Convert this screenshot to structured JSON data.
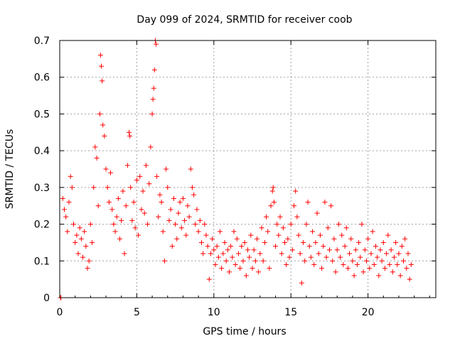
{
  "chart_data": {
    "type": "scatter",
    "title": "Day 099 of 2024, SRMTID for receiver coob",
    "xlabel": "GPS time / hours",
    "ylabel": "SRMTID / TECUs",
    "xlim": [
      0,
      24.4
    ],
    "ylim": [
      0,
      0.7
    ],
    "xticks": [
      0,
      5,
      10,
      15,
      20
    ],
    "xtick_labels": [
      "0",
      "5",
      "10",
      "15",
      "20"
    ],
    "yticks": [
      0,
      0.1,
      0.2,
      0.3,
      0.4,
      0.5,
      0.6,
      0.7
    ],
    "ytick_labels": [
      "0",
      "0.1",
      "0.2",
      "0.3",
      "0.4",
      "0.5",
      "0.6",
      "0.7"
    ],
    "grid": true,
    "marker": "plus",
    "color": "#ff0000",
    "series": [
      {
        "name": "SRMTID",
        "points": [
          [
            0.05,
            0.0
          ],
          [
            0.08,
            0.0
          ],
          [
            0.2,
            0.27
          ],
          [
            0.3,
            0.24
          ],
          [
            0.4,
            0.22
          ],
          [
            0.5,
            0.18
          ],
          [
            0.6,
            0.26
          ],
          [
            0.7,
            0.33
          ],
          [
            0.8,
            0.3
          ],
          [
            0.9,
            0.2
          ],
          [
            1.0,
            0.15
          ],
          [
            1.1,
            0.17
          ],
          [
            1.2,
            0.12
          ],
          [
            1.3,
            0.19
          ],
          [
            1.4,
            0.16
          ],
          [
            1.5,
            0.11
          ],
          [
            1.6,
            0.18
          ],
          [
            1.7,
            0.14
          ],
          [
            1.8,
            0.08
          ],
          [
            1.9,
            0.1
          ],
          [
            2.0,
            0.2
          ],
          [
            2.1,
            0.15
          ],
          [
            2.2,
            0.3
          ],
          [
            2.3,
            0.41
          ],
          [
            2.4,
            0.38
          ],
          [
            2.5,
            0.25
          ],
          [
            2.6,
            0.5
          ],
          [
            2.65,
            0.66
          ],
          [
            2.7,
            0.63
          ],
          [
            2.75,
            0.59
          ],
          [
            2.8,
            0.47
          ],
          [
            2.9,
            0.44
          ],
          [
            3.0,
            0.35
          ],
          [
            3.1,
            0.3
          ],
          [
            3.2,
            0.26
          ],
          [
            3.3,
            0.34
          ],
          [
            3.4,
            0.24
          ],
          [
            3.5,
            0.2
          ],
          [
            3.6,
            0.18
          ],
          [
            3.7,
            0.22
          ],
          [
            3.8,
            0.27
          ],
          [
            3.9,
            0.16
          ],
          [
            4.0,
            0.21
          ],
          [
            4.1,
            0.29
          ],
          [
            4.2,
            0.12
          ],
          [
            4.3,
            0.25
          ],
          [
            4.4,
            0.36
          ],
          [
            4.5,
            0.45
          ],
          [
            4.55,
            0.44
          ],
          [
            4.6,
            0.3
          ],
          [
            4.7,
            0.21
          ],
          [
            4.8,
            0.26
          ],
          [
            4.9,
            0.19
          ],
          [
            5.0,
            0.32
          ],
          [
            5.1,
            0.17
          ],
          [
            5.2,
            0.33
          ],
          [
            5.3,
            0.24
          ],
          [
            5.4,
            0.29
          ],
          [
            5.5,
            0.23
          ],
          [
            5.6,
            0.36
          ],
          [
            5.7,
            0.2
          ],
          [
            5.8,
            0.31
          ],
          [
            5.9,
            0.41
          ],
          [
            6.0,
            0.5
          ],
          [
            6.05,
            0.54
          ],
          [
            6.1,
            0.57
          ],
          [
            6.15,
            0.62
          ],
          [
            6.2,
            0.7
          ],
          [
            6.25,
            0.69
          ],
          [
            6.3,
            0.33
          ],
          [
            6.4,
            0.22
          ],
          [
            6.5,
            0.28
          ],
          [
            6.6,
            0.26
          ],
          [
            6.7,
            0.18
          ],
          [
            6.8,
            0.1
          ],
          [
            6.9,
            0.35
          ],
          [
            7.0,
            0.3
          ],
          [
            7.1,
            0.21
          ],
          [
            7.2,
            0.24
          ],
          [
            7.3,
            0.14
          ],
          [
            7.4,
            0.27
          ],
          [
            7.5,
            0.2
          ],
          [
            7.6,
            0.16
          ],
          [
            7.7,
            0.23
          ],
          [
            7.8,
            0.26
          ],
          [
            7.9,
            0.19
          ],
          [
            8.0,
            0.27
          ],
          [
            8.1,
            0.21
          ],
          [
            8.2,
            0.17
          ],
          [
            8.3,
            0.25
          ],
          [
            8.4,
            0.22
          ],
          [
            8.5,
            0.35
          ],
          [
            8.6,
            0.3
          ],
          [
            8.7,
            0.28
          ],
          [
            8.8,
            0.2
          ],
          [
            8.9,
            0.24
          ],
          [
            9.0,
            0.18
          ],
          [
            9.1,
            0.21
          ],
          [
            9.2,
            0.15
          ],
          [
            9.3,
            0.12
          ],
          [
            9.4,
            0.2
          ],
          [
            9.5,
            0.17
          ],
          [
            9.6,
            0.14
          ],
          [
            9.7,
            0.05
          ],
          [
            9.8,
            0.12
          ],
          [
            9.9,
            0.16
          ],
          [
            10.0,
            0.13
          ],
          [
            10.1,
            0.09
          ],
          [
            10.2,
            0.14
          ],
          [
            10.3,
            0.11
          ],
          [
            10.4,
            0.18
          ],
          [
            10.5,
            0.08
          ],
          [
            10.6,
            0.12
          ],
          [
            10.7,
            0.15
          ],
          [
            10.8,
            0.1
          ],
          [
            10.9,
            0.13
          ],
          [
            11.0,
            0.07
          ],
          [
            11.1,
            0.14
          ],
          [
            11.2,
            0.11
          ],
          [
            11.3,
            0.18
          ],
          [
            11.4,
            0.09
          ],
          [
            11.5,
            0.16
          ],
          [
            11.6,
            0.12
          ],
          [
            11.7,
            0.08
          ],
          [
            11.8,
            0.14
          ],
          [
            11.9,
            0.1
          ],
          [
            12.0,
            0.15
          ],
          [
            12.1,
            0.06
          ],
          [
            12.2,
            0.13
          ],
          [
            12.3,
            0.11
          ],
          [
            12.4,
            0.17
          ],
          [
            12.5,
            0.08
          ],
          [
            12.6,
            0.13
          ],
          [
            12.7,
            0.1
          ],
          [
            12.8,
            0.16
          ],
          [
            12.9,
            0.07
          ],
          [
            13.0,
            0.12
          ],
          [
            13.1,
            0.19
          ],
          [
            13.2,
            0.1
          ],
          [
            13.3,
            0.15
          ],
          [
            13.4,
            0.22
          ],
          [
            13.5,
            0.18
          ],
          [
            13.6,
            0.08
          ],
          [
            13.7,
            0.25
          ],
          [
            13.8,
            0.29
          ],
          [
            13.85,
            0.3
          ],
          [
            13.9,
            0.26
          ],
          [
            14.0,
            0.14
          ],
          [
            14.1,
            0.2
          ],
          [
            14.2,
            0.17
          ],
          [
            14.3,
            0.22
          ],
          [
            14.4,
            0.12
          ],
          [
            14.5,
            0.19
          ],
          [
            14.6,
            0.15
          ],
          [
            14.7,
            0.09
          ],
          [
            14.8,
            0.16
          ],
          [
            14.9,
            0.11
          ],
          [
            15.0,
            0.2
          ],
          [
            15.1,
            0.13
          ],
          [
            15.2,
            0.25
          ],
          [
            15.3,
            0.29
          ],
          [
            15.4,
            0.22
          ],
          [
            15.5,
            0.17
          ],
          [
            15.6,
            0.12
          ],
          [
            15.7,
            0.04
          ],
          [
            15.8,
            0.15
          ],
          [
            15.9,
            0.1
          ],
          [
            16.0,
            0.2
          ],
          [
            16.1,
            0.26
          ],
          [
            16.2,
            0.14
          ],
          [
            16.3,
            0.11
          ],
          [
            16.4,
            0.18
          ],
          [
            16.5,
            0.09
          ],
          [
            16.6,
            0.15
          ],
          [
            16.7,
            0.23
          ],
          [
            16.8,
            0.12
          ],
          [
            16.9,
            0.17
          ],
          [
            17.0,
            0.08
          ],
          [
            17.1,
            0.14
          ],
          [
            17.2,
            0.26
          ],
          [
            17.3,
            0.11
          ],
          [
            17.4,
            0.19
          ],
          [
            17.5,
            0.13
          ],
          [
            17.6,
            0.25
          ],
          [
            17.7,
            0.1
          ],
          [
            17.8,
            0.16
          ],
          [
            17.9,
            0.07
          ],
          [
            18.0,
            0.13
          ],
          [
            18.1,
            0.2
          ],
          [
            18.2,
            0.11
          ],
          [
            18.3,
            0.17
          ],
          [
            18.4,
            0.09
          ],
          [
            18.5,
            0.14
          ],
          [
            18.6,
            0.19
          ],
          [
            18.7,
            0.08
          ],
          [
            18.8,
            0.12
          ],
          [
            18.9,
            0.16
          ],
          [
            19.0,
            0.1
          ],
          [
            19.1,
            0.06
          ],
          [
            19.2,
            0.13
          ],
          [
            19.3,
            0.09
          ],
          [
            19.4,
            0.15
          ],
          [
            19.5,
            0.11
          ],
          [
            19.6,
            0.2
          ],
          [
            19.7,
            0.07
          ],
          [
            19.8,
            0.13
          ],
          [
            19.9,
            0.1
          ],
          [
            20.0,
            0.16
          ],
          [
            20.1,
            0.08
          ],
          [
            20.2,
            0.12
          ],
          [
            20.3,
            0.18
          ],
          [
            20.4,
            0.09
          ],
          [
            20.5,
            0.14
          ],
          [
            20.6,
            0.11
          ],
          [
            20.7,
            0.06
          ],
          [
            20.8,
            0.13
          ],
          [
            20.9,
            0.1
          ],
          [
            21.0,
            0.15
          ],
          [
            21.1,
            0.08
          ],
          [
            21.2,
            0.12
          ],
          [
            21.3,
            0.17
          ],
          [
            21.4,
            0.09
          ],
          [
            21.5,
            0.13
          ],
          [
            21.6,
            0.07
          ],
          [
            21.7,
            0.11
          ],
          [
            21.8,
            0.15
          ],
          [
            21.9,
            0.09
          ],
          [
            22.0,
            0.12
          ],
          [
            22.1,
            0.06
          ],
          [
            22.2,
            0.14
          ],
          [
            22.3,
            0.1
          ],
          [
            22.4,
            0.16
          ],
          [
            22.5,
            0.08
          ],
          [
            22.6,
            0.12
          ],
          [
            22.7,
            0.05
          ],
          [
            22.8,
            0.09
          ]
        ]
      }
    ]
  }
}
